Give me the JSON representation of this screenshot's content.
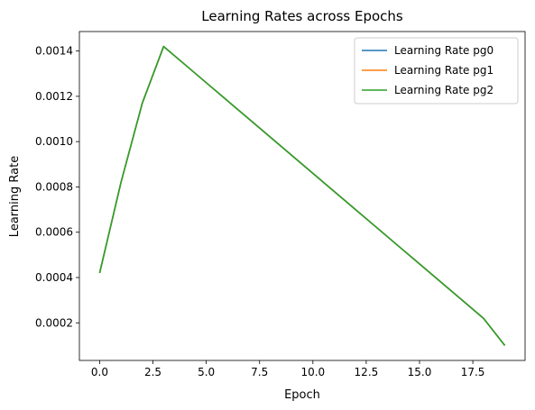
{
  "chart_data": {
    "type": "line",
    "title": "Learning Rates across Epochs",
    "xlabel": "Epoch",
    "ylabel": "Learning Rate",
    "x": [
      0,
      1,
      2,
      3,
      4,
      5,
      6,
      7,
      8,
      9,
      10,
      11,
      12,
      13,
      14,
      15,
      16,
      17,
      18,
      19
    ],
    "series": [
      {
        "name": "Learning Rate pg0",
        "color": "#1f77b4",
        "values": [
          0.00042,
          0.00082,
          0.00117,
          0.00142,
          0.00134,
          0.00126,
          0.00118,
          0.0011,
          0.00102,
          0.00094,
          0.00086,
          0.00078,
          0.0007,
          0.00062,
          0.00054,
          0.00046,
          0.00038,
          0.0003,
          0.00022,
          0.0001
        ]
      },
      {
        "name": "Learning Rate pg1",
        "color": "#ff7f0e",
        "values": [
          0.00042,
          0.00082,
          0.00117,
          0.00142,
          0.00134,
          0.00126,
          0.00118,
          0.0011,
          0.00102,
          0.00094,
          0.00086,
          0.00078,
          0.0007,
          0.00062,
          0.00054,
          0.00046,
          0.00038,
          0.0003,
          0.00022,
          0.0001
        ]
      },
      {
        "name": "Learning Rate pg2",
        "color": "#2ca02c",
        "values": [
          0.00042,
          0.00082,
          0.00117,
          0.00142,
          0.00134,
          0.00126,
          0.00118,
          0.0011,
          0.00102,
          0.00094,
          0.00086,
          0.00078,
          0.0007,
          0.00062,
          0.00054,
          0.00046,
          0.00038,
          0.0003,
          0.00022,
          0.0001
        ]
      }
    ],
    "xlim": [
      -0.95,
      19.95
    ],
    "ylim": [
      3.4e-05,
      0.001486
    ],
    "xticks": [
      0.0,
      2.5,
      5.0,
      7.5,
      10.0,
      12.5,
      15.0,
      17.5
    ],
    "xtick_labels": [
      "0.0",
      "2.5",
      "5.0",
      "7.5",
      "10.0",
      "12.5",
      "15.0",
      "17.5"
    ],
    "yticks": [
      0.0002,
      0.0004,
      0.0006,
      0.0008,
      0.001,
      0.0012,
      0.0014
    ],
    "ytick_labels": [
      "0.0002",
      "0.0004",
      "0.0006",
      "0.0008",
      "0.0010",
      "0.0012",
      "0.0014"
    ],
    "grid": false,
    "legend_position": "top-right"
  }
}
